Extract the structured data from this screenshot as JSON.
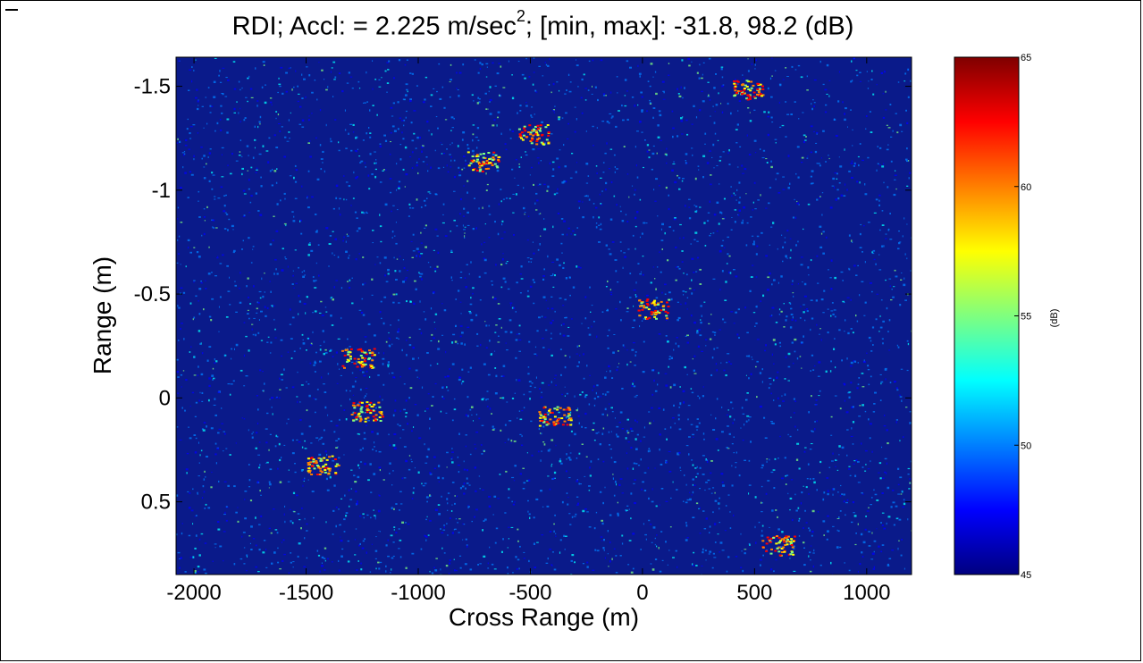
{
  "chart_data": {
    "type": "heatmap",
    "title_prefix": "RDI; Accl: = 2.225 m/sec",
    "title_sup": "2",
    "title_suffix": "; [min, max]: -31.8, 98.2 (dB)",
    "xlabel": "Cross Range (m)",
    "ylabel": "Range (m)",
    "xlim": [
      -2080,
      1200
    ],
    "ylim": [
      -1.64,
      0.85
    ],
    "y_reversed": true,
    "x_ticks": [
      -2000,
      -1500,
      -1000,
      -500,
      0,
      500,
      1000
    ],
    "x_tick_labels": [
      "-2000",
      "-1500",
      "-1000",
      "-500",
      "0",
      "500",
      "1000"
    ],
    "y_ticks": [
      -1.5,
      -1,
      -0.5,
      0,
      0.5
    ],
    "y_tick_labels": [
      "-1.5",
      "-1",
      "-0.5",
      "0",
      "0.5"
    ],
    "colorbar": {
      "label": "(dB)",
      "range": [
        45,
        65
      ],
      "ticks": [
        45,
        50,
        55,
        60,
        65
      ],
      "tick_labels": [
        "45",
        "50",
        "55",
        "60",
        "65"
      ],
      "colormap": "jet"
    },
    "grid": false
  },
  "colors": {
    "jet": [
      "#00007f",
      "#0000ff",
      "#007fff",
      "#00ffff",
      "#7fff7f",
      "#ffff00",
      "#ff7f00",
      "#ff0000",
      "#7f0000"
    ],
    "plot_bg": "#0a1a8a"
  }
}
